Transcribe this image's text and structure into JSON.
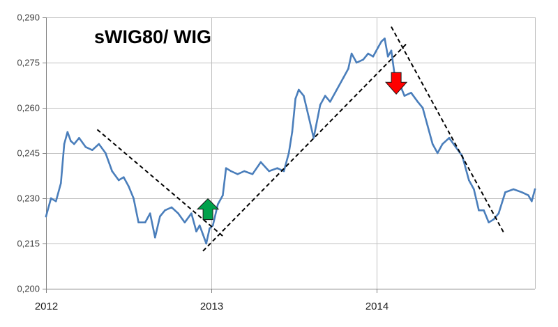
{
  "chart_data": {
    "type": "line",
    "title": "sWIG80/ WIG",
    "xlabel": "",
    "ylabel": "",
    "xlim": [
      2012.0,
      2014.96
    ],
    "ylim": [
      0.2,
      0.29
    ],
    "x_ticks": [
      {
        "value": 2012,
        "label": "2012"
      },
      {
        "value": 2013,
        "label": "2013"
      },
      {
        "value": 2014,
        "label": "2014"
      }
    ],
    "y_ticks": [
      {
        "value": 0.2,
        "label": "0,200"
      },
      {
        "value": 0.215,
        "label": "0,215"
      },
      {
        "value": 0.23,
        "label": "0,230"
      },
      {
        "value": 0.245,
        "label": "0,245"
      },
      {
        "value": 0.26,
        "label": "0,260"
      },
      {
        "value": 0.275,
        "label": "0,275"
      },
      {
        "value": 0.29,
        "label": "0,290"
      }
    ],
    "grid": {
      "horizontal": true,
      "vertical": true
    },
    "legend": "none",
    "series": [
      {
        "color": "#4a7ebb",
        "x": [
          2012.0,
          2012.03,
          2012.06,
          2012.09,
          2012.11,
          2012.13,
          2012.15,
          2012.17,
          2012.2,
          2012.24,
          2012.28,
          2012.32,
          2012.36,
          2012.4,
          2012.44,
          2012.47,
          2012.5,
          2012.53,
          2012.56,
          2012.6,
          2012.63,
          2012.66,
          2012.69,
          2012.72,
          2012.76,
          2012.8,
          2012.84,
          2012.88,
          2012.91,
          2012.93,
          2012.95,
          2012.97,
          2012.99,
          2013.01,
          2013.04,
          2013.07,
          2013.09,
          2013.12,
          2013.16,
          2013.2,
          2013.25,
          2013.3,
          2013.35,
          2013.4,
          2013.44,
          2013.47,
          2013.49,
          2013.51,
          2013.53,
          2013.56,
          2013.59,
          2013.62,
          2013.66,
          2013.69,
          2013.72,
          2013.76,
          2013.8,
          2013.83,
          2013.85,
          2013.88,
          2013.92,
          2013.95,
          2013.98,
          2014.01,
          2014.03,
          2014.05,
          2014.07,
          2014.09,
          2014.11,
          2014.14,
          2014.17,
          2014.21,
          2014.25,
          2014.28,
          2014.31,
          2014.34,
          2014.37,
          2014.4,
          2014.44,
          2014.48,
          2014.52,
          2014.56,
          2014.59,
          2014.62,
          2014.65,
          2014.68,
          2014.71,
          2014.74,
          2014.78,
          2014.83,
          2014.88,
          2014.92,
          2014.94,
          2014.96
        ],
        "y": [
          0.224,
          0.23,
          0.229,
          0.235,
          0.248,
          0.252,
          0.249,
          0.248,
          0.25,
          0.247,
          0.246,
          0.248,
          0.245,
          0.239,
          0.236,
          0.237,
          0.234,
          0.23,
          0.222,
          0.222,
          0.225,
          0.217,
          0.224,
          0.226,
          0.227,
          0.225,
          0.222,
          0.225,
          0.219,
          0.221,
          0.218,
          0.215,
          0.22,
          0.221,
          0.228,
          0.231,
          0.24,
          0.239,
          0.238,
          0.239,
          0.238,
          0.242,
          0.239,
          0.24,
          0.239,
          0.245,
          0.252,
          0.263,
          0.266,
          0.264,
          0.257,
          0.25,
          0.261,
          0.264,
          0.262,
          0.266,
          0.27,
          0.273,
          0.278,
          0.275,
          0.276,
          0.278,
          0.277,
          0.28,
          0.282,
          0.283,
          0.277,
          0.279,
          0.271,
          0.268,
          0.264,
          0.265,
          0.262,
          0.26,
          0.254,
          0.248,
          0.245,
          0.248,
          0.25,
          0.247,
          0.244,
          0.236,
          0.233,
          0.226,
          0.226,
          0.222,
          0.223,
          0.225,
          0.232,
          0.233,
          0.232,
          0.231,
          0.229,
          0.233
        ]
      }
    ],
    "trend_lines": [
      {
        "style": "dashed",
        "color": "#000000",
        "x": [
          2012.31,
          2013.08
        ],
        "y": [
          0.2528,
          0.217
        ]
      },
      {
        "style": "dashed",
        "color": "#000000",
        "x": [
          2012.95,
          2014.19
        ],
        "y": [
          0.2125,
          0.2817
        ]
      },
      {
        "style": "dashed",
        "color": "#000000",
        "x": [
          2014.09,
          2014.77
        ],
        "y": [
          0.2869,
          0.2187
        ]
      }
    ],
    "annotations": [
      {
        "kind": "arrow-up",
        "color": "#00a14b",
        "x": 2012.98,
        "y": 0.2264
      },
      {
        "kind": "arrow-down",
        "color": "#ff0000",
        "x": 2014.12,
        "y": 0.268
      }
    ]
  }
}
